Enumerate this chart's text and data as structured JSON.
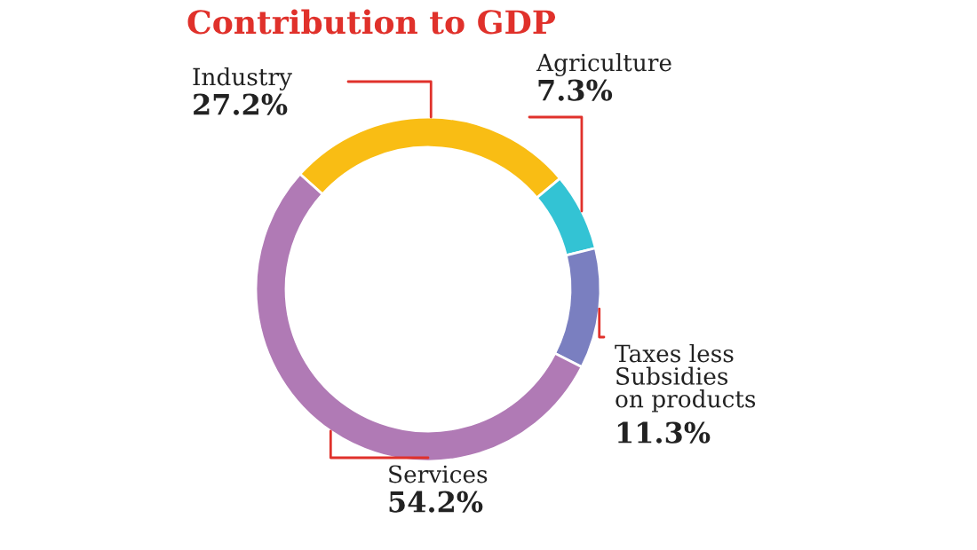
{
  "chart_data": {
    "type": "donut",
    "title": "Contribution to GDP",
    "categories": [
      "Industry",
      "Agriculture",
      "Taxes less\nSubsidies\non products",
      "Services"
    ],
    "values": [
      27.2,
      7.3,
      11.3,
      54.2
    ],
    "value_labels": [
      "27.2%",
      "7.3%",
      "11.3%",
      "54.2%"
    ],
    "colors": [
      "#f9bd14",
      "#33c3d4",
      "#7a7fc0",
      "#b07ab5"
    ],
    "legend": false
  }
}
